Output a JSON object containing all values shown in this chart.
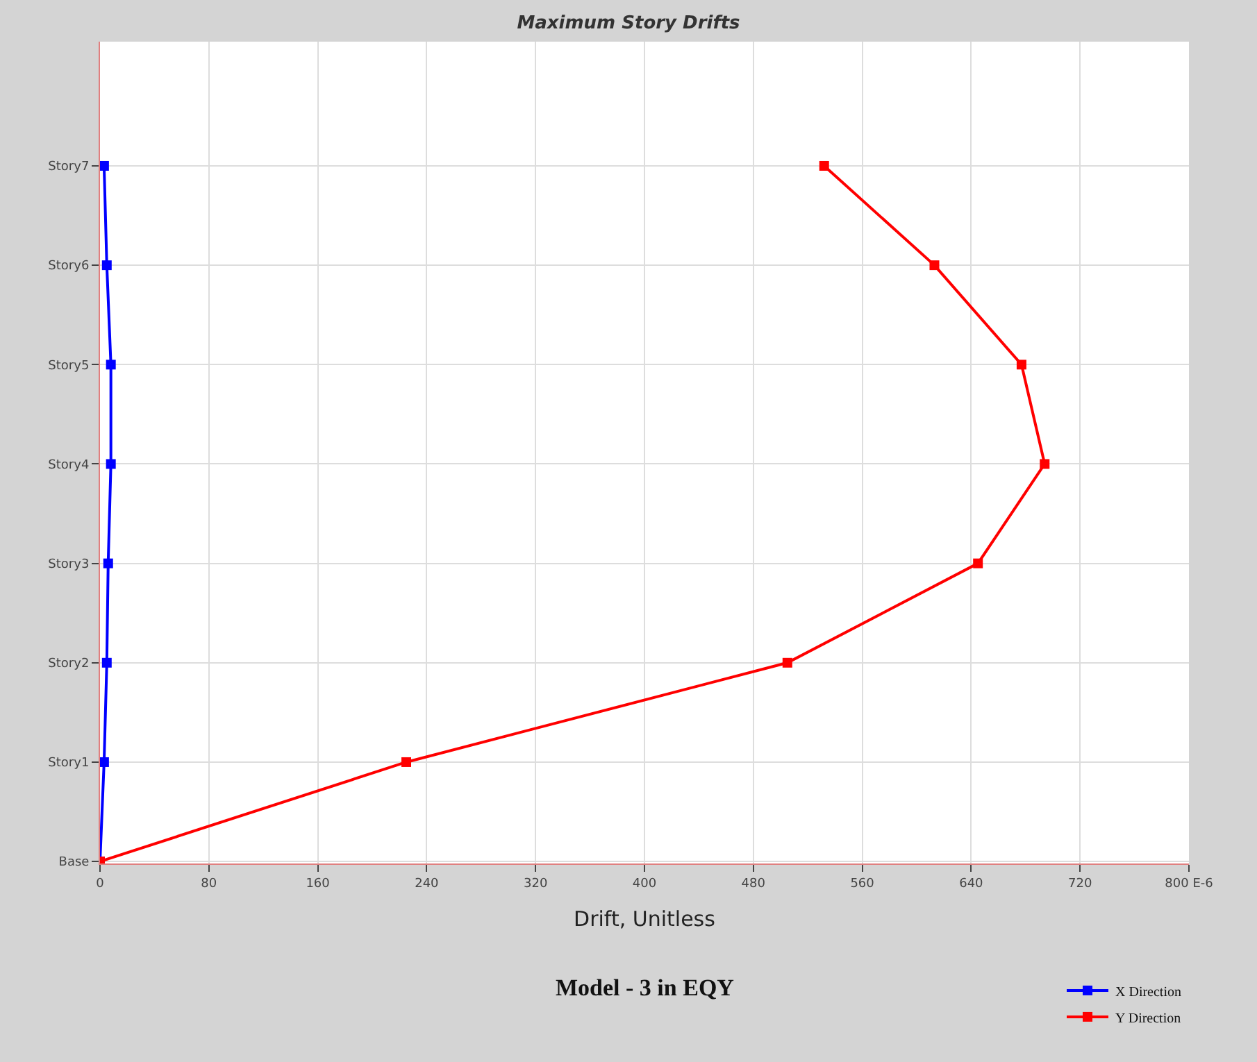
{
  "chart_data": {
    "type": "line",
    "title": "Maximum Story Drifts",
    "xlabel": "Drift, Unitless",
    "orientation": "horizontal",
    "categories": [
      "Story7",
      "Story6",
      "Story5",
      "Story4",
      "Story3",
      "Story2",
      "Story1",
      "Base"
    ],
    "series": [
      {
        "name": "X Direction",
        "color": "#0000ff",
        "values": [
          3,
          5,
          8,
          8,
          6,
          5,
          3,
          0
        ]
      },
      {
        "name": "Y Direction",
        "color": "#ff0000",
        "values": [
          532,
          613,
          677,
          694,
          645,
          505,
          225,
          0
        ]
      }
    ],
    "xlim": [
      0,
      800
    ],
    "xticks": [
      0,
      80,
      160,
      240,
      320,
      400,
      480,
      560,
      640,
      720,
      {
        "value": 800,
        "label": "800 E-6"
      }
    ],
    "grid": true,
    "legend": "bottom right",
    "marker": "square",
    "line_style": "solid",
    "annotations": [
      "Model - 3 in EQY"
    ]
  }
}
